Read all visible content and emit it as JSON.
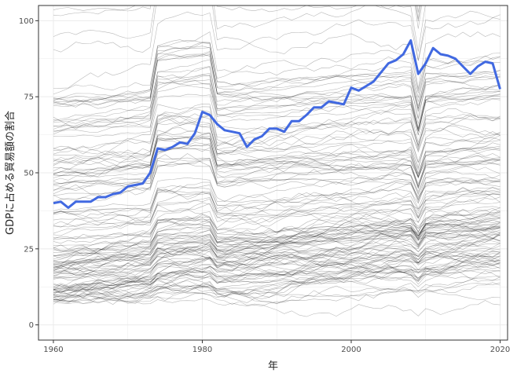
{
  "chart_data": {
    "type": "line",
    "title": "",
    "xlabel": "年",
    "ylabel": "GDPに占める貿易額の割合",
    "xlim": [
      1958,
      2021
    ],
    "ylim": [
      -5,
      105
    ],
    "x_ticks": [
      1960,
      1980,
      2000,
      2020
    ],
    "y_ticks": [
      0,
      25,
      50,
      75,
      100
    ],
    "grid": true,
    "legend": "none",
    "colors": {
      "highlight": "#4169E1",
      "background_lines": "#000000",
      "grid": "#ebebeb",
      "panel_border": "#333333"
    },
    "highlight_series": {
      "x": [
        1960,
        1961,
        1962,
        1963,
        1964,
        1965,
        1966,
        1967,
        1968,
        1969,
        1970,
        1971,
        1972,
        1973,
        1974,
        1975,
        1976,
        1977,
        1978,
        1979,
        1980,
        1981,
        1982,
        1983,
        1984,
        1985,
        1986,
        1987,
        1988,
        1989,
        1990,
        1991,
        1992,
        1993,
        1994,
        1995,
        1996,
        1997,
        1998,
        1999,
        2000,
        2001,
        2002,
        2003,
        2004,
        2005,
        2006,
        2007,
        2008,
        2009,
        2010,
        2011,
        2012,
        2013,
        2014,
        2015,
        2016,
        2017,
        2018,
        2019,
        2020
      ],
      "values": [
        40,
        40.5,
        38.5,
        40.5,
        40.5,
        40.5,
        42,
        42,
        43,
        43.5,
        45.5,
        46,
        46.5,
        50,
        58,
        57.5,
        58.5,
        60,
        59.5,
        63,
        70,
        69,
        66,
        64,
        63.5,
        63,
        58.5,
        61,
        62,
        64.5,
        64.5,
        63.5,
        67,
        67,
        69,
        71.5,
        71.5,
        73.5,
        73,
        72.5,
        78,
        77,
        78.5,
        80,
        83,
        86,
        87,
        89,
        93.5,
        82.5,
        86,
        91,
        89,
        88.5,
        87.5,
        85,
        82.5,
        85,
        86.5,
        86,
        77.5
      ]
    }
  }
}
